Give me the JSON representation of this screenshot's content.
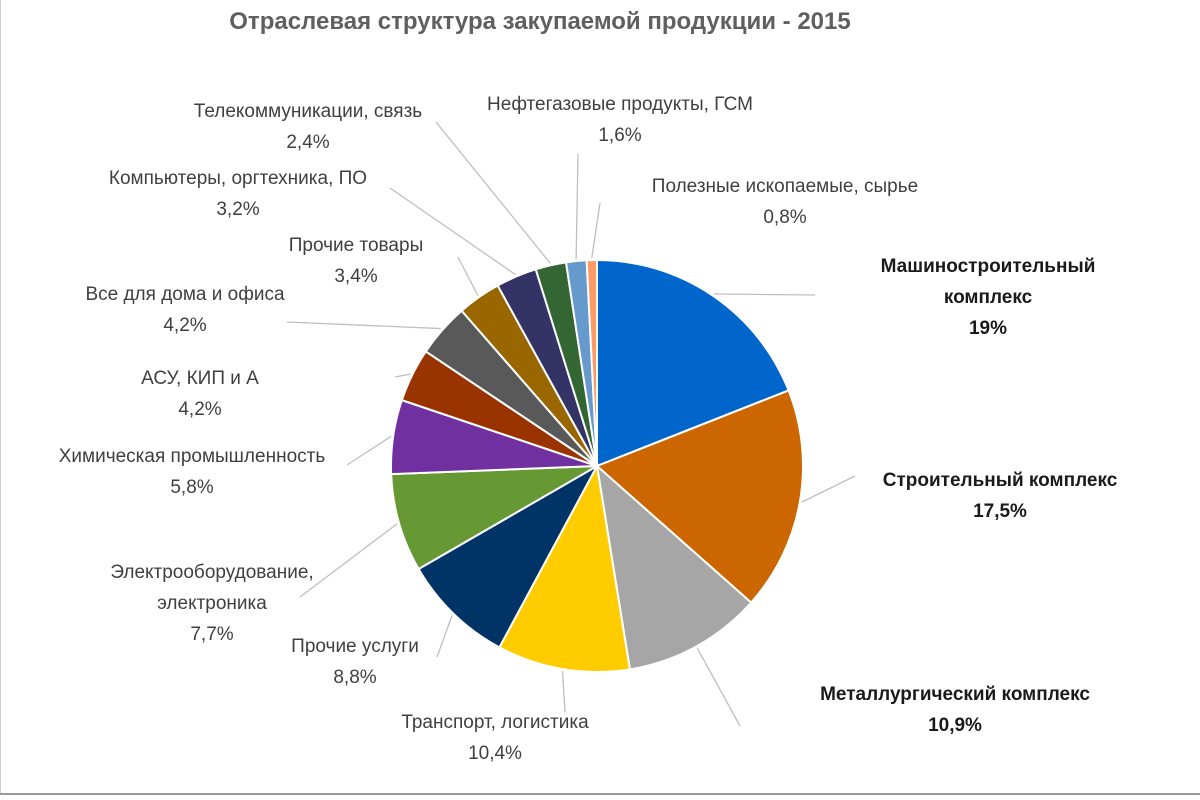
{
  "chart_data": {
    "type": "pie",
    "title": "Отраслевая структура закупаемой продукции - 2015",
    "slices": [
      {
        "name": "Машиностроительный комплекс",
        "label_lines": [
          "Машиностроительный",
          "комплекс"
        ],
        "value_label": "19%",
        "value": 19.0,
        "color": "#0066cc",
        "bold": true
      },
      {
        "name": "Строительный комплекс",
        "label_lines": [
          "Строительный комплекс"
        ],
        "value_label": "17,5%",
        "value": 17.5,
        "color": "#cc6600",
        "bold": true
      },
      {
        "name": "Металлургический комплекс",
        "label_lines": [
          "Металлургический комплекс"
        ],
        "value_label": "10,9%",
        "value": 10.9,
        "color": "#a6a6a6",
        "bold": true
      },
      {
        "name": "Транспорт, логистика",
        "label_lines": [
          "Транспорт, логистика"
        ],
        "value_label": "10,4%",
        "value": 10.4,
        "color": "#ffcc00",
        "bold": false
      },
      {
        "name": "Прочие услуги",
        "label_lines": [
          "Прочие услуги"
        ],
        "value_label": "8,8%",
        "value": 8.8,
        "color": "#003366",
        "bold": false
      },
      {
        "name": "Электрооборудование, электроника",
        "label_lines": [
          "Электрооборудование,",
          "электроника"
        ],
        "value_label": "7,7%",
        "value": 7.7,
        "color": "#669933",
        "bold": false
      },
      {
        "name": "Химическая промышленность",
        "label_lines": [
          "Химическая промышленность"
        ],
        "value_label": "5,8%",
        "value": 5.8,
        "color": "#7030a0",
        "bold": false
      },
      {
        "name": "АСУ, КИП и А",
        "label_lines": [
          "АСУ, КИП и А"
        ],
        "value_label": "4,2%",
        "value": 4.2,
        "color": "#993300",
        "bold": false
      },
      {
        "name": "Все для дома и офиса",
        "label_lines": [
          "Все для дома и офиса"
        ],
        "value_label": "4,2%",
        "value": 4.2,
        "color": "#595959",
        "bold": false
      },
      {
        "name": "Прочие товары",
        "label_lines": [
          "Прочие товары"
        ],
        "value_label": "3,4%",
        "value": 3.4,
        "color": "#996600",
        "bold": false
      },
      {
        "name": "Компьютеры, оргтехника, ПО",
        "label_lines": [
          "Компьютеры, оргтехника, ПО"
        ],
        "value_label": "3,2%",
        "value": 3.2,
        "color": "#333366",
        "bold": false
      },
      {
        "name": "Телекоммуникации, связь",
        "label_lines": [
          "Телекоммуникации, связь"
        ],
        "value_label": "2,4%",
        "value": 2.4,
        "color": "#336633",
        "bold": false
      },
      {
        "name": "Нефтегазовые продукты, ГСМ",
        "label_lines": [
          "Нефтегазовые продукты, ГСМ"
        ],
        "value_label": "1,6%",
        "value": 1.6,
        "color": "#6699cc",
        "bold": false
      },
      {
        "name": "Полезные ископаемые, сырье",
        "label_lines": [
          "Полезные ископаемые, сырье"
        ],
        "value_label": "0,8%",
        "value": 0.8,
        "color": "#ff9966",
        "bold": false
      }
    ],
    "legend": "none",
    "labels": "outside-with-leader-lines"
  }
}
